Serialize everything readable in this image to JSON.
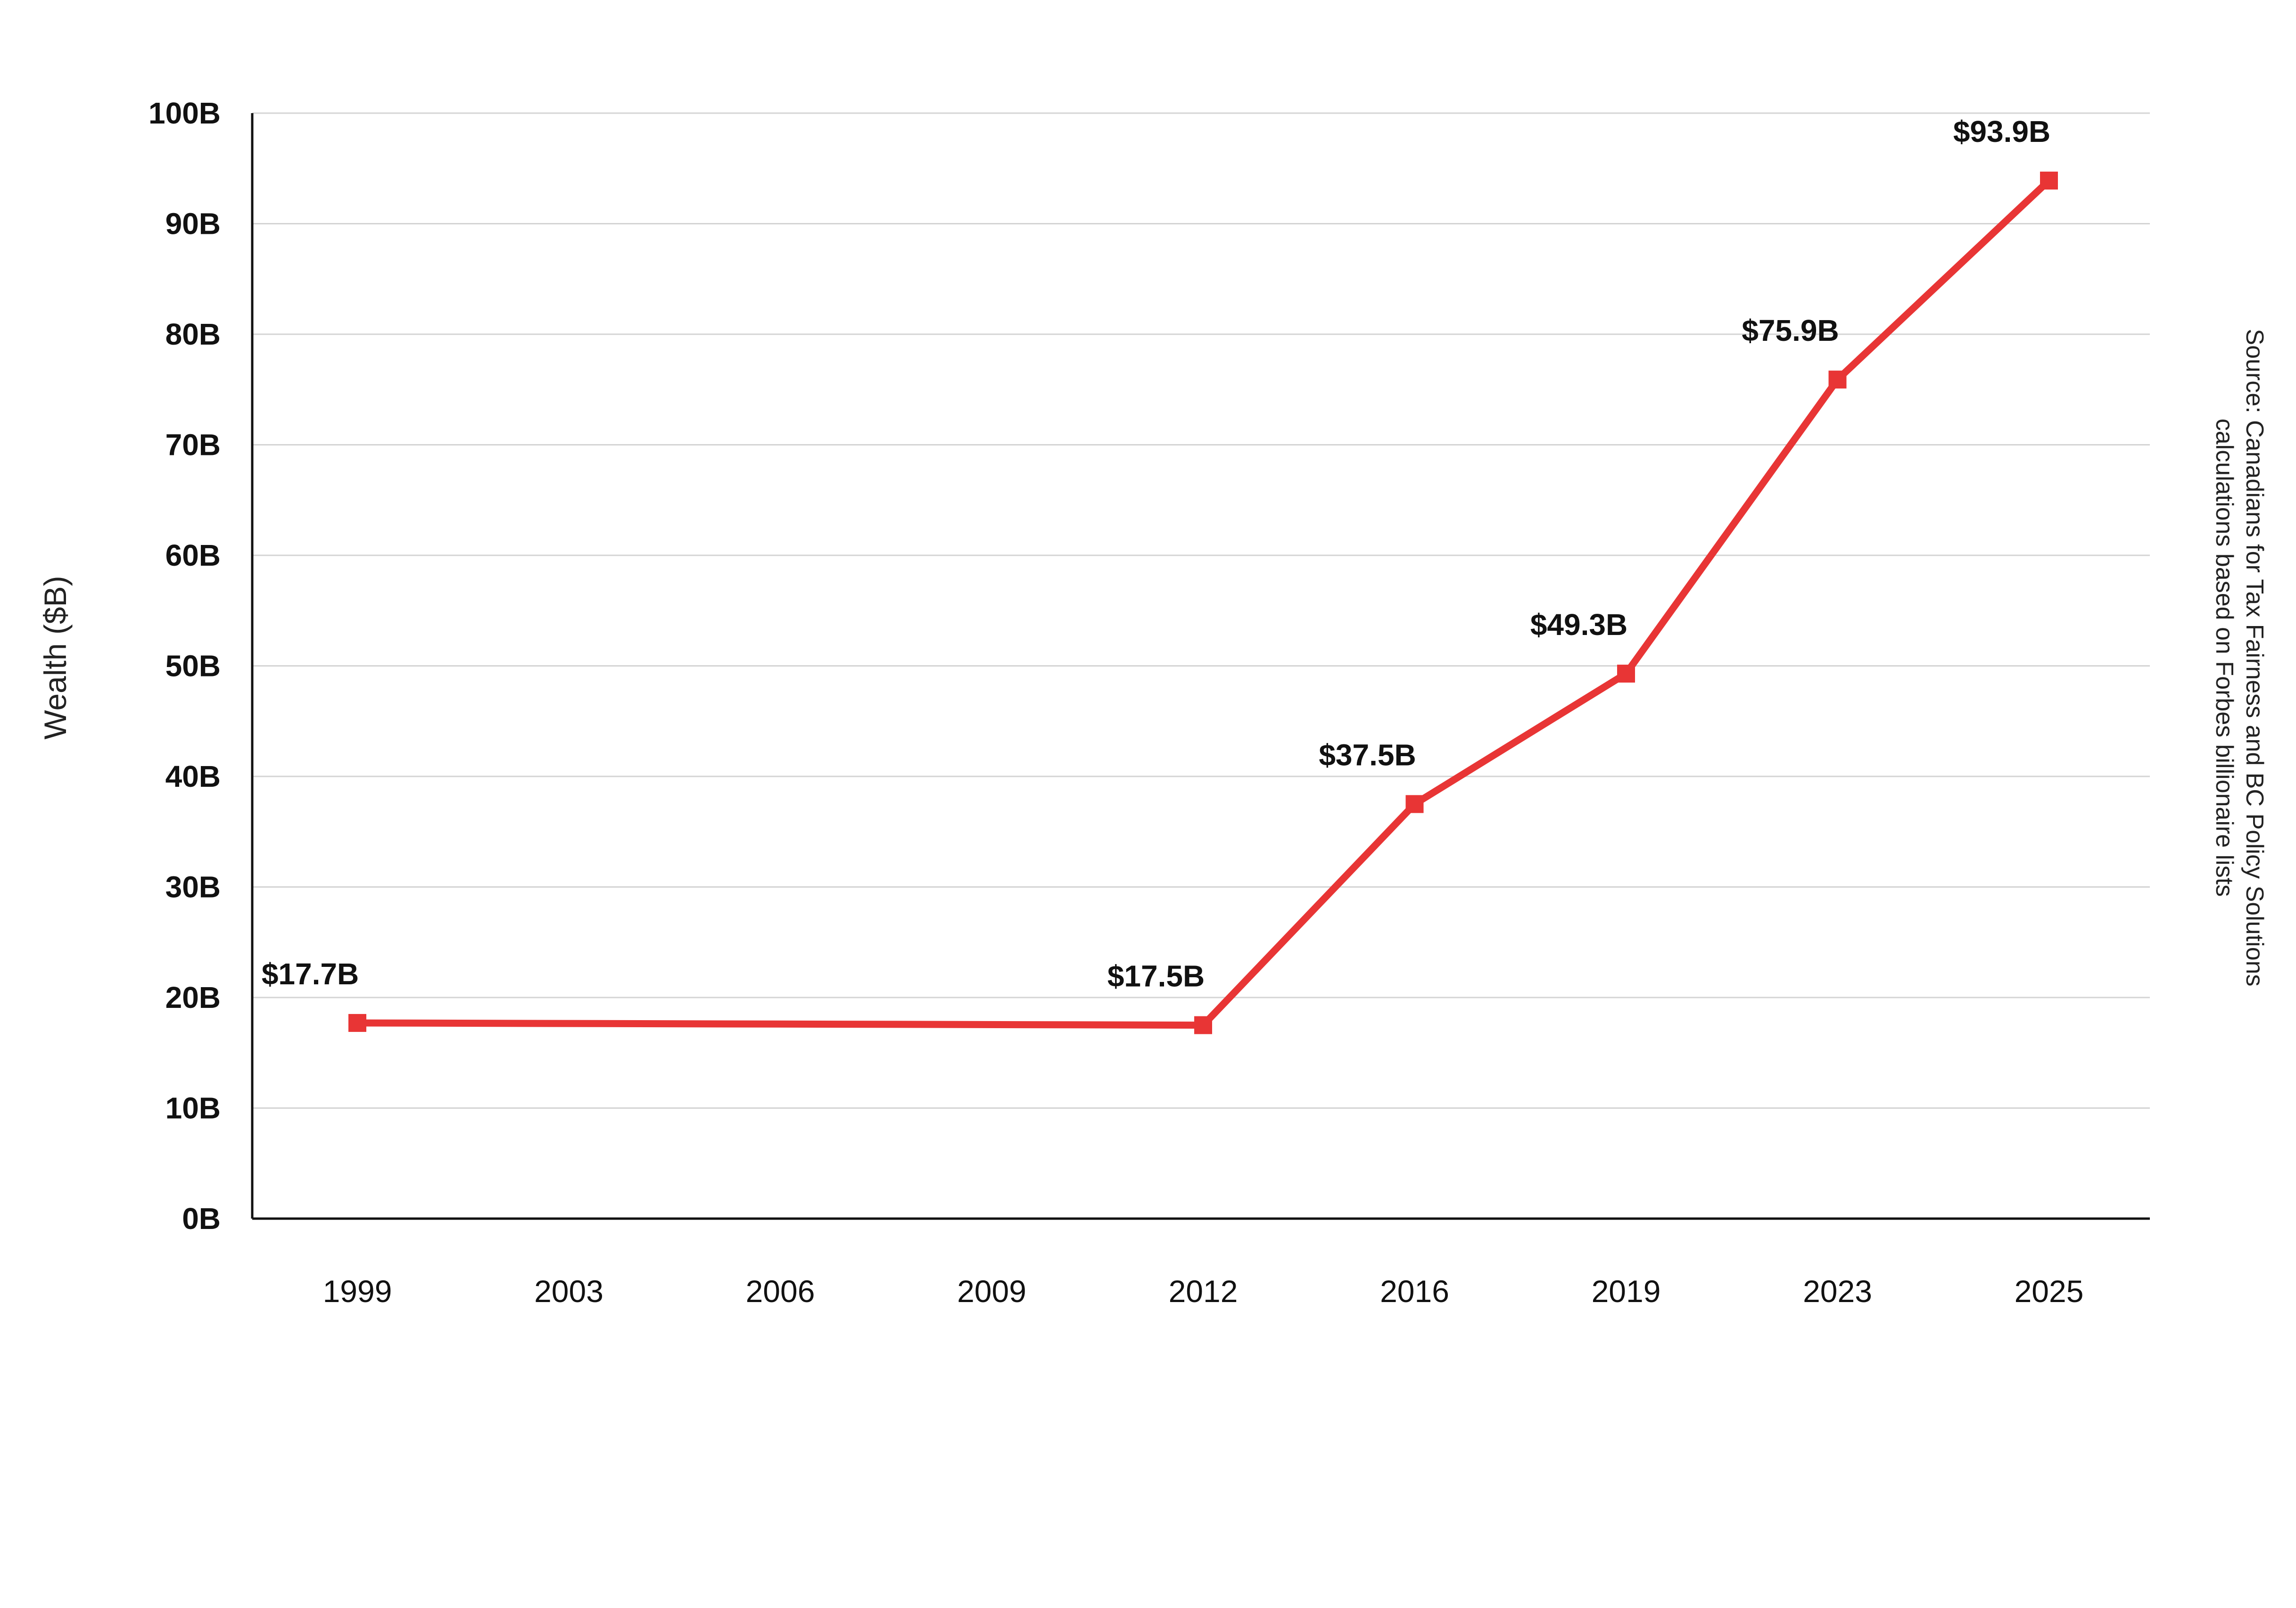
{
  "chart_data": {
    "type": "line",
    "title": "",
    "xlabel": "",
    "ylabel": "Wealth ($B)",
    "categories": [
      "1999",
      "2003",
      "2006",
      "2009",
      "2012",
      "2016",
      "2019",
      "2023",
      "2025"
    ],
    "y_ticks": [
      "0B",
      "10B",
      "20B",
      "30B",
      "40B",
      "50B",
      "60B",
      "70B",
      "80B",
      "90B",
      "100B"
    ],
    "ylim": [
      0,
      100
    ],
    "grid": "horizontal",
    "legend": "none",
    "color": "#e83535",
    "series": [
      {
        "points": [
          {
            "x": "1999",
            "y": 17.7,
            "label": "$17.7B"
          },
          {
            "x": "2012",
            "y": 17.5,
            "label": "$17.5B"
          },
          {
            "x": "2016",
            "y": 37.5,
            "label": "$37.5B"
          },
          {
            "x": "2019",
            "y": 49.3,
            "label": "$49.3B"
          },
          {
            "x": "2023",
            "y": 75.9,
            "label": "$75.9B"
          },
          {
            "x": "2025",
            "y": 93.9,
            "label": "$93.9B"
          }
        ]
      }
    ],
    "source": [
      "Source: Canadians for Tax Fairness and BC Policy Solutions",
      "calculations based on Forbes billionaire lists"
    ]
  }
}
